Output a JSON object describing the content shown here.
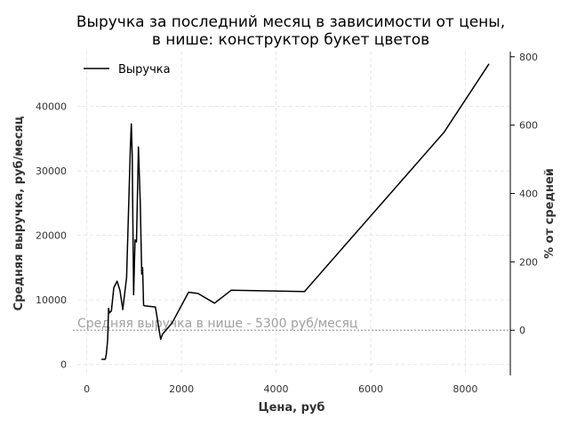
{
  "chart_data": {
    "type": "line",
    "title_line1": "Выручка за последний месяц в зависимости от цены,",
    "title_line2": "в нише: конструктор букет цветов",
    "xlabel": "Цена, руб",
    "ylabel": "Средняя выручка, руб/месяц",
    "ylabel_right": "% от средней",
    "xlim": [
      -200,
      8950
    ],
    "ylim": [
      -1700,
      48500
    ],
    "x_ticks": [
      0,
      2000,
      4000,
      6000,
      8000
    ],
    "y_ticks": [
      0,
      10000,
      20000,
      30000,
      40000
    ],
    "y2_ticks": [
      0,
      200,
      400,
      600,
      800
    ],
    "y2_base": 5300,
    "grid": true,
    "legend_position": "top-left",
    "reference_line": {
      "value": 5300,
      "label": "Средняя выручка в нише - 5300 руб/месяц",
      "color": "#a0a0a0"
    },
    "series": [
      {
        "name": "Выручка",
        "color": "#000000",
        "x": [
          310,
          390,
          410,
          440,
          460,
          480,
          520,
          570,
          640,
          700,
          760,
          840,
          920,
          940,
          960,
          990,
          1020,
          1050,
          1090,
          1130,
          1160,
          1180,
          1200,
          1220,
          1450,
          1560,
          1600,
          1800,
          2150,
          2350,
          2700,
          3050,
          4600,
          7550,
          8500
        ],
        "y": [
          800,
          800,
          1500,
          3800,
          8700,
          8000,
          8300,
          11900,
          12900,
          11500,
          8500,
          13500,
          33500,
          37300,
          32500,
          10800,
          19300,
          19000,
          33700,
          25000,
          14000,
          15000,
          9200,
          9100,
          8900,
          3900,
          4700,
          6400,
          11200,
          11000,
          9500,
          11500,
          11300,
          36000,
          46600
        ]
      }
    ]
  }
}
